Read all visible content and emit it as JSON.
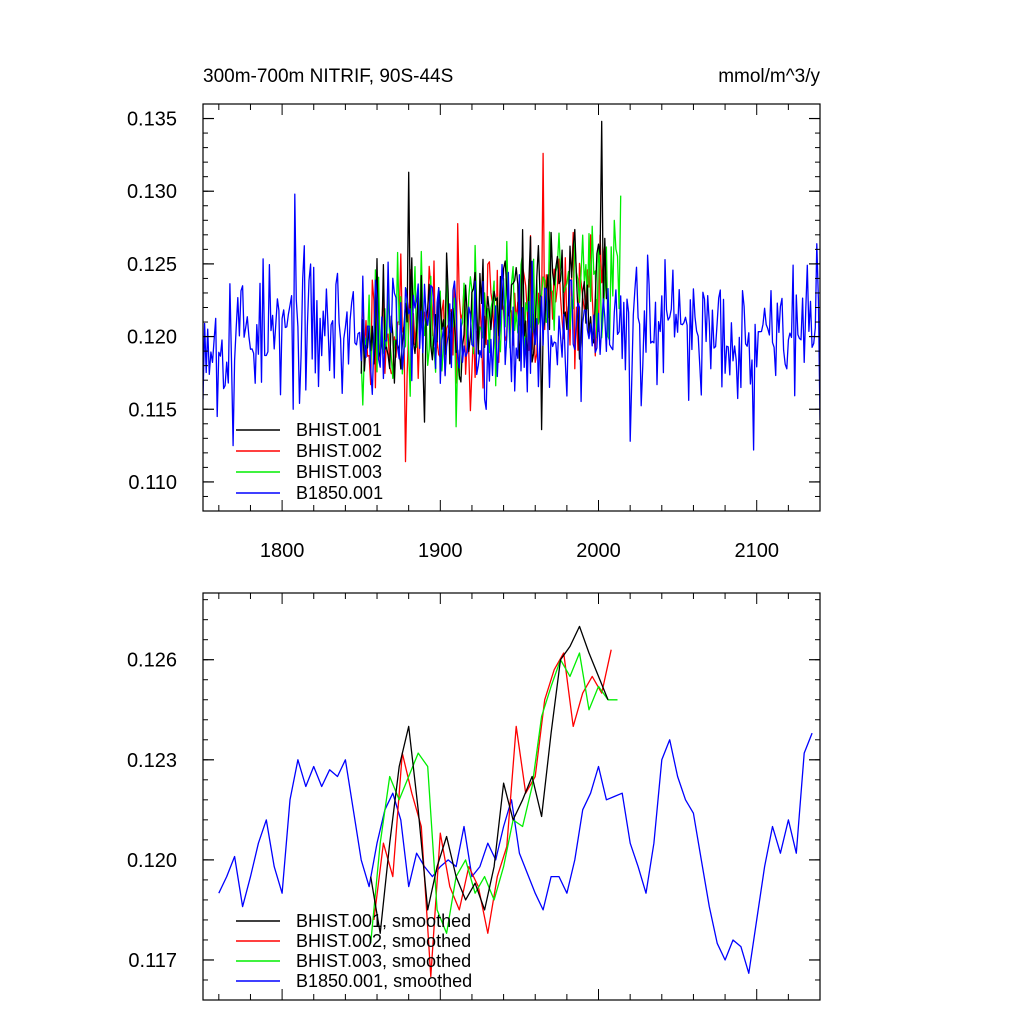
{
  "chart_data": [
    {
      "type": "line",
      "title": "300m-700m NITRIF, 90S-44S",
      "units": "mmol/m^3/y",
      "xlim": [
        1750,
        2140
      ],
      "ylim": [
        0.108,
        0.136
      ],
      "xticks": [
        1800,
        1900,
        2000,
        2100
      ],
      "xtick_labels": [
        "1800",
        "1900",
        "2000",
        "2100"
      ],
      "yticks": [
        0.11,
        0.115,
        0.12,
        0.125,
        0.13,
        0.135
      ],
      "ytick_labels": [
        "0.110",
        "0.115",
        "0.120",
        "0.125",
        "0.130",
        "0.135"
      ],
      "legend_position": "bottom-left",
      "series": [
        {
          "name": "BHIST.001",
          "color": "#000000",
          "x_start": 1850,
          "x_end": 2005,
          "mean": 0.1205,
          "amplitude": 0.0042,
          "trend_end": 0.0035,
          "seed": 11,
          "peaks": [
            [
              1880,
              0.1313
            ],
            [
              2002,
              0.1348
            ],
            [
              1964,
              0.1136
            ]
          ]
        },
        {
          "name": "BHIST.002",
          "color": "#ff0000",
          "x_start": 1850,
          "x_end": 2005,
          "mean": 0.1205,
          "amplitude": 0.0042,
          "trend_end": 0.0035,
          "seed": 23,
          "peaks": [
            [
              1878,
              0.1114
            ],
            [
              1965,
              0.1326
            ]
          ]
        },
        {
          "name": "BHIST.003",
          "color": "#00ee00",
          "x_start": 1850,
          "x_end": 2014,
          "mean": 0.1205,
          "amplitude": 0.004,
          "trend_end": 0.004,
          "seed": 37,
          "peaks": [
            [
              2014,
              0.1297
            ],
            [
              1910,
              0.1138
            ]
          ]
        },
        {
          "name": "B1850.001",
          "color": "#0000ff",
          "x_start": 1750,
          "x_end": 2140,
          "mean": 0.1205,
          "amplitude": 0.004,
          "trend_end": 0.0,
          "seed": 53,
          "peaks": [
            [
              1759,
              0.1145
            ],
            [
              1769,
              0.1125
            ],
            [
              1799,
              0.116
            ],
            [
              1808,
              0.1298
            ],
            [
              2020,
              0.1128
            ],
            [
              2098,
              0.1122
            ]
          ]
        }
      ]
    },
    {
      "type": "line",
      "title": "",
      "xlim": [
        1750,
        2140
      ],
      "ylim": [
        0.1158,
        0.128
      ],
      "xticks": [
        1800,
        1900,
        2000,
        2100
      ],
      "xtick_labels": [],
      "yticks": [
        0.117,
        0.12,
        0.123,
        0.126
      ],
      "ytick_labels": [
        "0.117",
        "0.120",
        "0.123",
        "0.126"
      ],
      "legend_position": "bottom-left",
      "series": [
        {
          "name": "BHIST.001, smoothed",
          "color": "#000000",
          "x": [
            1856,
            1862,
            1868,
            1874,
            1880,
            1886,
            1892,
            1898,
            1904,
            1910,
            1916,
            1922,
            1928,
            1934,
            1940,
            1946,
            1952,
            1958,
            1964,
            1970,
            1976,
            1982,
            1988,
            1994,
            2000,
            2006
          ],
          "y": [
            0.1195,
            0.1178,
            0.1205,
            0.1228,
            0.124,
            0.1215,
            0.1185,
            0.1198,
            0.1207,
            0.1195,
            0.1188,
            0.1193,
            0.1185,
            0.1198,
            0.1223,
            0.1212,
            0.1218,
            0.1225,
            0.1213,
            0.1238,
            0.126,
            0.1264,
            0.127,
            0.1262,
            0.1255,
            0.1248
          ]
        },
        {
          "name": "BHIST.002, smoothed",
          "color": "#ff0000",
          "x": [
            1858,
            1864,
            1870,
            1876,
            1882,
            1888,
            1894,
            1900,
            1906,
            1912,
            1918,
            1924,
            1930,
            1936,
            1942,
            1948,
            1954,
            1960,
            1966,
            1972,
            1978,
            1984,
            1990,
            1996,
            2002,
            2008
          ],
          "y": [
            0.1182,
            0.1205,
            0.1195,
            0.1232,
            0.122,
            0.121,
            0.1165,
            0.1208,
            0.1192,
            0.1185,
            0.1198,
            0.1192,
            0.1178,
            0.1195,
            0.1204,
            0.124,
            0.122,
            0.1225,
            0.1248,
            0.1257,
            0.1262,
            0.124,
            0.125,
            0.1255,
            0.125,
            0.1263
          ]
        },
        {
          "name": "BHIST.003, smoothed",
          "color": "#00ee00",
          "x": [
            1856,
            1862,
            1868,
            1874,
            1880,
            1886,
            1892,
            1898,
            1904,
            1910,
            1916,
            1922,
            1928,
            1934,
            1940,
            1946,
            1952,
            1958,
            1964,
            1970,
            1976,
            1982,
            1988,
            1994,
            2000,
            2006,
            2012
          ],
          "y": [
            0.1175,
            0.1205,
            0.1225,
            0.1218,
            0.1225,
            0.1232,
            0.1228,
            0.1185,
            0.1178,
            0.1195,
            0.12,
            0.119,
            0.1195,
            0.1188,
            0.1198,
            0.1212,
            0.121,
            0.1222,
            0.1243,
            0.1252,
            0.126,
            0.1255,
            0.1262,
            0.1245,
            0.1252,
            0.1248,
            0.1248
          ]
        },
        {
          "name": "B1850.001, smoothed",
          "color": "#0000ff",
          "x": [
            1760,
            1765,
            1770,
            1775,
            1780,
            1785,
            1790,
            1795,
            1800,
            1805,
            1810,
            1815,
            1820,
            1825,
            1830,
            1835,
            1840,
            1845,
            1850,
            1855,
            1860,
            1865,
            1870,
            1875,
            1880,
            1885,
            1890,
            1895,
            1900,
            1905,
            1910,
            1915,
            1920,
            1925,
            1930,
            1935,
            1940,
            1945,
            1950,
            1955,
            1960,
            1965,
            1970,
            1975,
            1980,
            1985,
            1990,
            1995,
            2000,
            2005,
            2010,
            2015,
            2020,
            2025,
            2030,
            2035,
            2040,
            2045,
            2050,
            2055,
            2060,
            2065,
            2070,
            2075,
            2080,
            2085,
            2090,
            2095,
            2100,
            2105,
            2110,
            2115,
            2120,
            2125,
            2130,
            2135
          ],
          "y": [
            0.119,
            0.1195,
            0.1201,
            0.1186,
            0.1195,
            0.1205,
            0.1212,
            0.1198,
            0.119,
            0.1218,
            0.123,
            0.1222,
            0.1228,
            0.1222,
            0.1227,
            0.1225,
            0.123,
            0.1215,
            0.12,
            0.1192,
            0.1205,
            0.1215,
            0.122,
            0.1212,
            0.1192,
            0.1202,
            0.1198,
            0.1195,
            0.1198,
            0.12,
            0.1198,
            0.121,
            0.1195,
            0.1198,
            0.1205,
            0.12,
            0.121,
            0.1218,
            0.1202,
            0.1196,
            0.119,
            0.1185,
            0.1195,
            0.1195,
            0.119,
            0.12,
            0.1215,
            0.122,
            0.1228,
            0.1218,
            0.1219,
            0.122,
            0.1205,
            0.1198,
            0.119,
            0.1205,
            0.123,
            0.1236,
            0.1225,
            0.1218,
            0.1214,
            0.12,
            0.1186,
            0.1175,
            0.117,
            0.1176,
            0.1174,
            0.1166,
            0.1182,
            0.1198,
            0.121,
            0.1202,
            0.1212,
            0.1202,
            0.1232,
            0.1238
          ]
        }
      ]
    }
  ]
}
